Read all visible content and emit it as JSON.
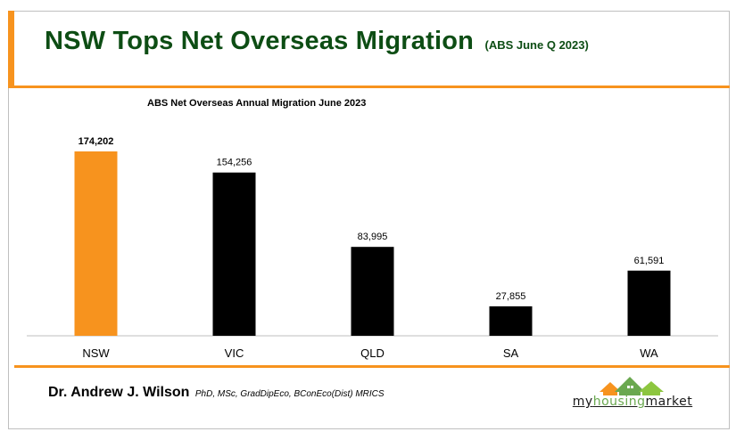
{
  "header": {
    "title": "NSW Tops Net Overseas Migration",
    "subtitle": "(ABS June Q 2023)"
  },
  "chart_data": {
    "type": "bar",
    "title": "ABS Net Overseas Annual Migration June 2023",
    "categories": [
      "NSW",
      "VIC",
      "QLD",
      "SA",
      "WA"
    ],
    "values": [
      174202,
      154256,
      83995,
      27855,
      61591
    ],
    "value_labels": [
      "174,202",
      "154,256",
      "83,995",
      "27,855",
      "61,591"
    ],
    "highlight_index": 0,
    "colors": {
      "highlight": "#F7931E",
      "default": "#000000"
    },
    "ylim": [
      0,
      180000
    ],
    "xlabel": "",
    "ylabel": "",
    "grid": false,
    "legend": "none"
  },
  "footer": {
    "author_name": "Dr. Andrew J. Wilson",
    "author_credentials": "PhD, MSc, GradDipEco, BConEco(Dist) MRICS",
    "logo_text_a": "my",
    "logo_text_b": "housing",
    "logo_text_c": "market"
  },
  "colors": {
    "accent": "#F7931E",
    "title_green": "#0d4d14",
    "logo_green": "#6aa84f"
  }
}
